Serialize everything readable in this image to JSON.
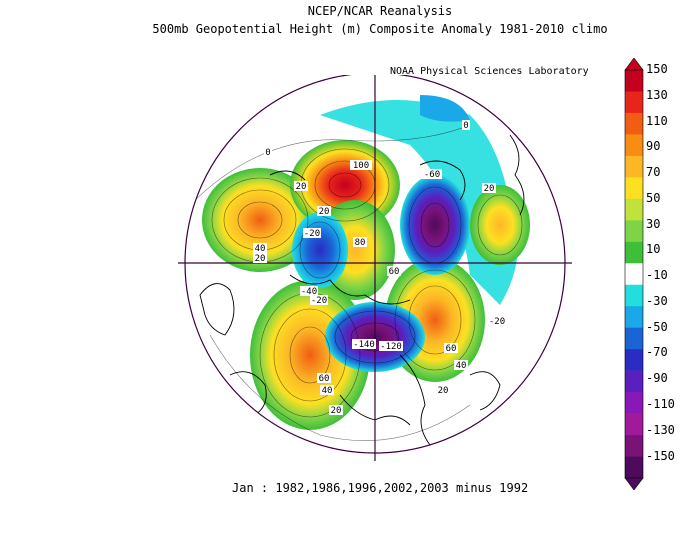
{
  "title_line1": "NCEP/NCAR Reanalysis",
  "title_line2": "500mb Geopotential Height (m) Composite Anomaly 1981-2010 climo",
  "credit": "NOAA Physical Sciences Laboratory",
  "footer": "Jan : 1982,1986,1996,2002,2003 minus 1992",
  "colorbar": {
    "levels": [
      150,
      130,
      110,
      90,
      70,
      50,
      30,
      10,
      -10,
      -30,
      -50,
      -70,
      -90,
      -110,
      -130,
      -150
    ],
    "labels": [
      "150",
      "130",
      "110",
      "90",
      "70",
      "50",
      "30",
      "10",
      "-10",
      "-30",
      "-50",
      "-70",
      "-90",
      "-110",
      "-130",
      "-150"
    ],
    "colors": [
      "#c4001f",
      "#e8251a",
      "#f15d13",
      "#f88d14",
      "#fcb626",
      "#fde022",
      "#c0e23a",
      "#7fd347",
      "#3fbe3a",
      "#ffffff",
      "#22dede",
      "#1aa8e8",
      "#1b64d6",
      "#2a2cc4",
      "#5a1fbf",
      "#8a17b8",
      "#a01a9b",
      "#7a1278",
      "#4e0a5c"
    ]
  },
  "contour_labels": [
    {
      "text": "100",
      "value": 100
    },
    {
      "text": "-60",
      "value": -60
    },
    {
      "text": "20",
      "value": 20
    },
    {
      "text": "20",
      "value": 20
    },
    {
      "text": "40",
      "value": 40
    },
    {
      "text": "20",
      "value": 20
    },
    {
      "text": "-20",
      "value": -20
    },
    {
      "text": "20",
      "value": 20
    },
    {
      "text": "80",
      "value": 80
    },
    {
      "text": "60",
      "value": 60
    },
    {
      "text": "-40",
      "value": -40
    },
    {
      "text": "-20",
      "value": -20
    },
    {
      "text": "-140",
      "value": -140
    },
    {
      "text": "-120",
      "value": -120
    },
    {
      "text": "60",
      "value": 60
    },
    {
      "text": "40",
      "value": 40
    },
    {
      "text": "60",
      "value": 60
    },
    {
      "text": "40",
      "value": 40
    },
    {
      "text": "20",
      "value": 20
    },
    {
      "text": "20",
      "value": 20
    },
    {
      "text": "-20",
      "value": -20
    },
    {
      "text": "0",
      "value": 0
    },
    {
      "text": "0",
      "value": 0
    }
  ]
}
